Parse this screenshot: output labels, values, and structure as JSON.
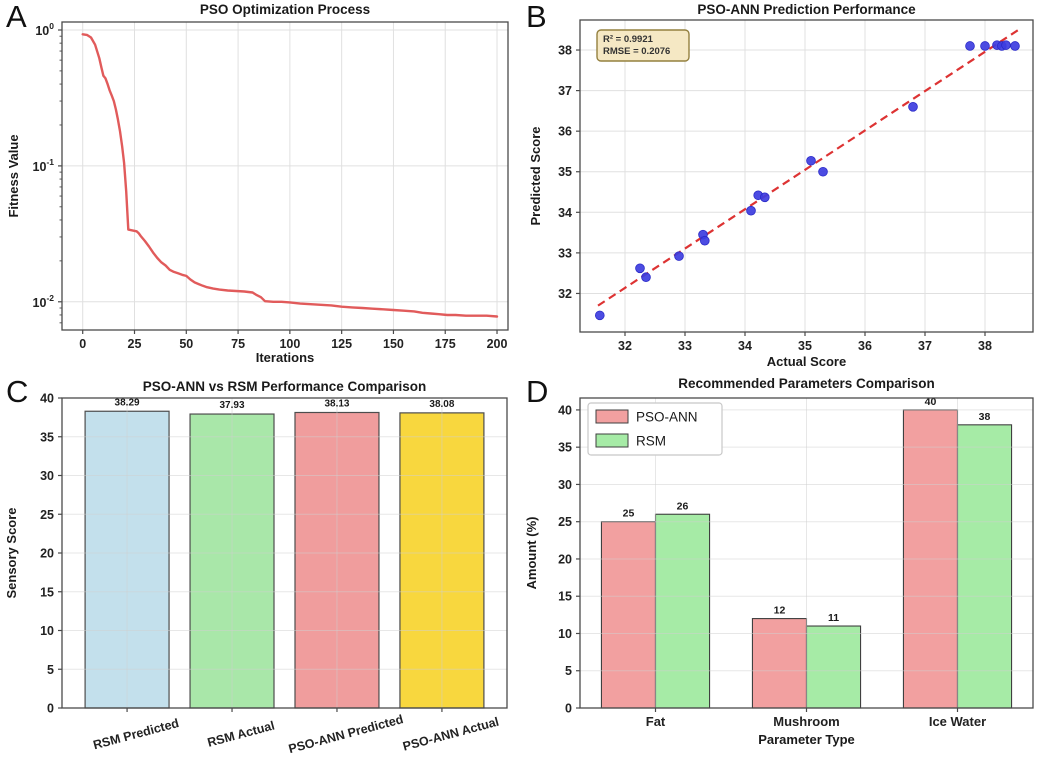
{
  "chart_data": [
    {
      "type": "line",
      "panel_letter": "A",
      "title": "PSO Optimization Process",
      "xlabel": "Iterations",
      "ylabel": "Fitness Value",
      "xlim": [
        -10,
        205.3
      ],
      "x_ticks": [
        0,
        25,
        50,
        75,
        100,
        125,
        150,
        175,
        200
      ],
      "yscale": "log",
      "ylim": [
        0.0062,
        1.145
      ],
      "y_ticks": [
        {
          "v": 1,
          "base": "10",
          "exp": "0"
        },
        {
          "v": 0.1,
          "base": "10",
          "exp": "-1"
        },
        {
          "v": 0.01,
          "base": "10",
          "exp": "-2"
        }
      ],
      "grid": true,
      "line_color": "#e15b5b",
      "series": [
        {
          "name": "fitness",
          "x": [
            0,
            2,
            4,
            6,
            8,
            9,
            10,
            11,
            12,
            13,
            14,
            15,
            16,
            17,
            18,
            19,
            20,
            21,
            22,
            24,
            26,
            27,
            28,
            30,
            32,
            34,
            36,
            38,
            40,
            42,
            44,
            46,
            48,
            50,
            52,
            54,
            56,
            58,
            60,
            63,
            66,
            70,
            74,
            78,
            80,
            82,
            84,
            86,
            88,
            92,
            96,
            100,
            105,
            110,
            115,
            120,
            125,
            130,
            135,
            140,
            145,
            150,
            155,
            160,
            164,
            168,
            172,
            176,
            180,
            185,
            190,
            195,
            200
          ],
          "y": [
            0.93,
            0.92,
            0.88,
            0.78,
            0.62,
            0.53,
            0.46,
            0.44,
            0.4,
            0.36,
            0.33,
            0.3,
            0.26,
            0.22,
            0.18,
            0.14,
            0.105,
            0.065,
            0.034,
            0.0335,
            0.033,
            0.032,
            0.0305,
            0.028,
            0.0255,
            0.023,
            0.021,
            0.0195,
            0.0185,
            0.0172,
            0.0166,
            0.0162,
            0.0158,
            0.0155,
            0.0146,
            0.0139,
            0.0135,
            0.0131,
            0.0128,
            0.0125,
            0.0123,
            0.0121,
            0.012,
            0.0119,
            0.0118,
            0.0117,
            0.0112,
            0.0108,
            0.0101,
            0.01,
            0.01,
            0.0099,
            0.0097,
            0.0096,
            0.0095,
            0.0094,
            0.0092,
            0.0091,
            0.009,
            0.0089,
            0.0088,
            0.0087,
            0.0086,
            0.0085,
            0.0083,
            0.0082,
            0.0081,
            0.008,
            0.008,
            0.0079,
            0.0079,
            0.0079,
            0.0078
          ]
        }
      ]
    },
    {
      "type": "scatter",
      "panel_letter": "B",
      "title": "PSO-ANN Prediction Performance",
      "xlabel": "Actual Score",
      "ylabel": "Predicted Score",
      "xlim": [
        31.25,
        38.8
      ],
      "ylim": [
        31.05,
        38.74
      ],
      "x_ticks": [
        32,
        33,
        34,
        35,
        36,
        37,
        38
      ],
      "y_ticks": [
        32,
        33,
        34,
        35,
        36,
        37,
        38
      ],
      "grid": true,
      "point_color": "#3d3de0",
      "point_edge": "#2a2ac8",
      "points": [
        [
          31.58,
          31.46
        ],
        [
          32.25,
          32.62
        ],
        [
          32.35,
          32.4
        ],
        [
          32.9,
          32.92
        ],
        [
          33.3,
          33.45
        ],
        [
          33.33,
          33.3
        ],
        [
          34.1,
          34.04
        ],
        [
          34.22,
          34.42
        ],
        [
          34.33,
          34.37
        ],
        [
          35.1,
          35.27
        ],
        [
          35.3,
          35.0
        ],
        [
          36.8,
          36.6
        ],
        [
          37.75,
          38.1
        ],
        [
          38.0,
          38.1
        ],
        [
          38.2,
          38.12
        ],
        [
          38.28,
          38.1
        ],
        [
          38.35,
          38.12
        ],
        [
          38.5,
          38.1
        ]
      ],
      "fit_line": {
        "color": "#dd3333",
        "dashed": true,
        "x": [
          31.55,
          38.58
        ],
        "y": [
          31.7,
          38.52
        ]
      },
      "annotation": {
        "lines": [
          "R² = 0.9921",
          "RMSE = 0.2076"
        ],
        "bg": "#f5e8c4",
        "border": "#94803f",
        "position": "top-left"
      }
    },
    {
      "type": "bar",
      "panel_letter": "C",
      "title": "PSO-ANN vs RSM Performance Comparison",
      "xlabel": "",
      "ylabel": "Sensory Score",
      "categories": [
        "RSM Predicted",
        "RSM Actual",
        "PSO-ANN Predicted",
        "PSO-ANN Actual"
      ],
      "values": [
        38.29,
        37.93,
        38.13,
        38.08
      ],
      "value_labels": [
        "38.29",
        "37.93",
        "38.13",
        "38.08"
      ],
      "bar_colors": [
        "#c3e0ec",
        "#a9e7a9",
        "#f09d9d",
        "#f8d73e"
      ],
      "bar_edge": "#4d4d4d",
      "ylim": [
        0,
        40
      ],
      "y_ticks": [
        0,
        5,
        10,
        15,
        20,
        25,
        30,
        35,
        40
      ],
      "grid": true,
      "tick_label_rotation": -15
    },
    {
      "type": "grouped_bar",
      "panel_letter": "D",
      "title": "Recommended Parameters Comparison",
      "xlabel": "Parameter Type",
      "ylabel": "Amount (%)",
      "categories": [
        "Fat",
        "Mushroom",
        "Ice Water"
      ],
      "series": [
        {
          "name": "PSO-ANN",
          "color": "#f2a0a0",
          "values": [
            25,
            12,
            40
          ],
          "value_labels": [
            "25",
            "12",
            "40"
          ]
        },
        {
          "name": "RSM",
          "color": "#a6eba6",
          "values": [
            26,
            11,
            38
          ],
          "value_labels": [
            "26",
            "11",
            "38"
          ]
        }
      ],
      "bar_edge": "#3f3f3f",
      "ylim": [
        0,
        41.6
      ],
      "y_ticks": [
        0,
        5,
        10,
        15,
        20,
        25,
        30,
        35,
        40
      ],
      "grid": true,
      "legend_position": "top-left"
    }
  ]
}
